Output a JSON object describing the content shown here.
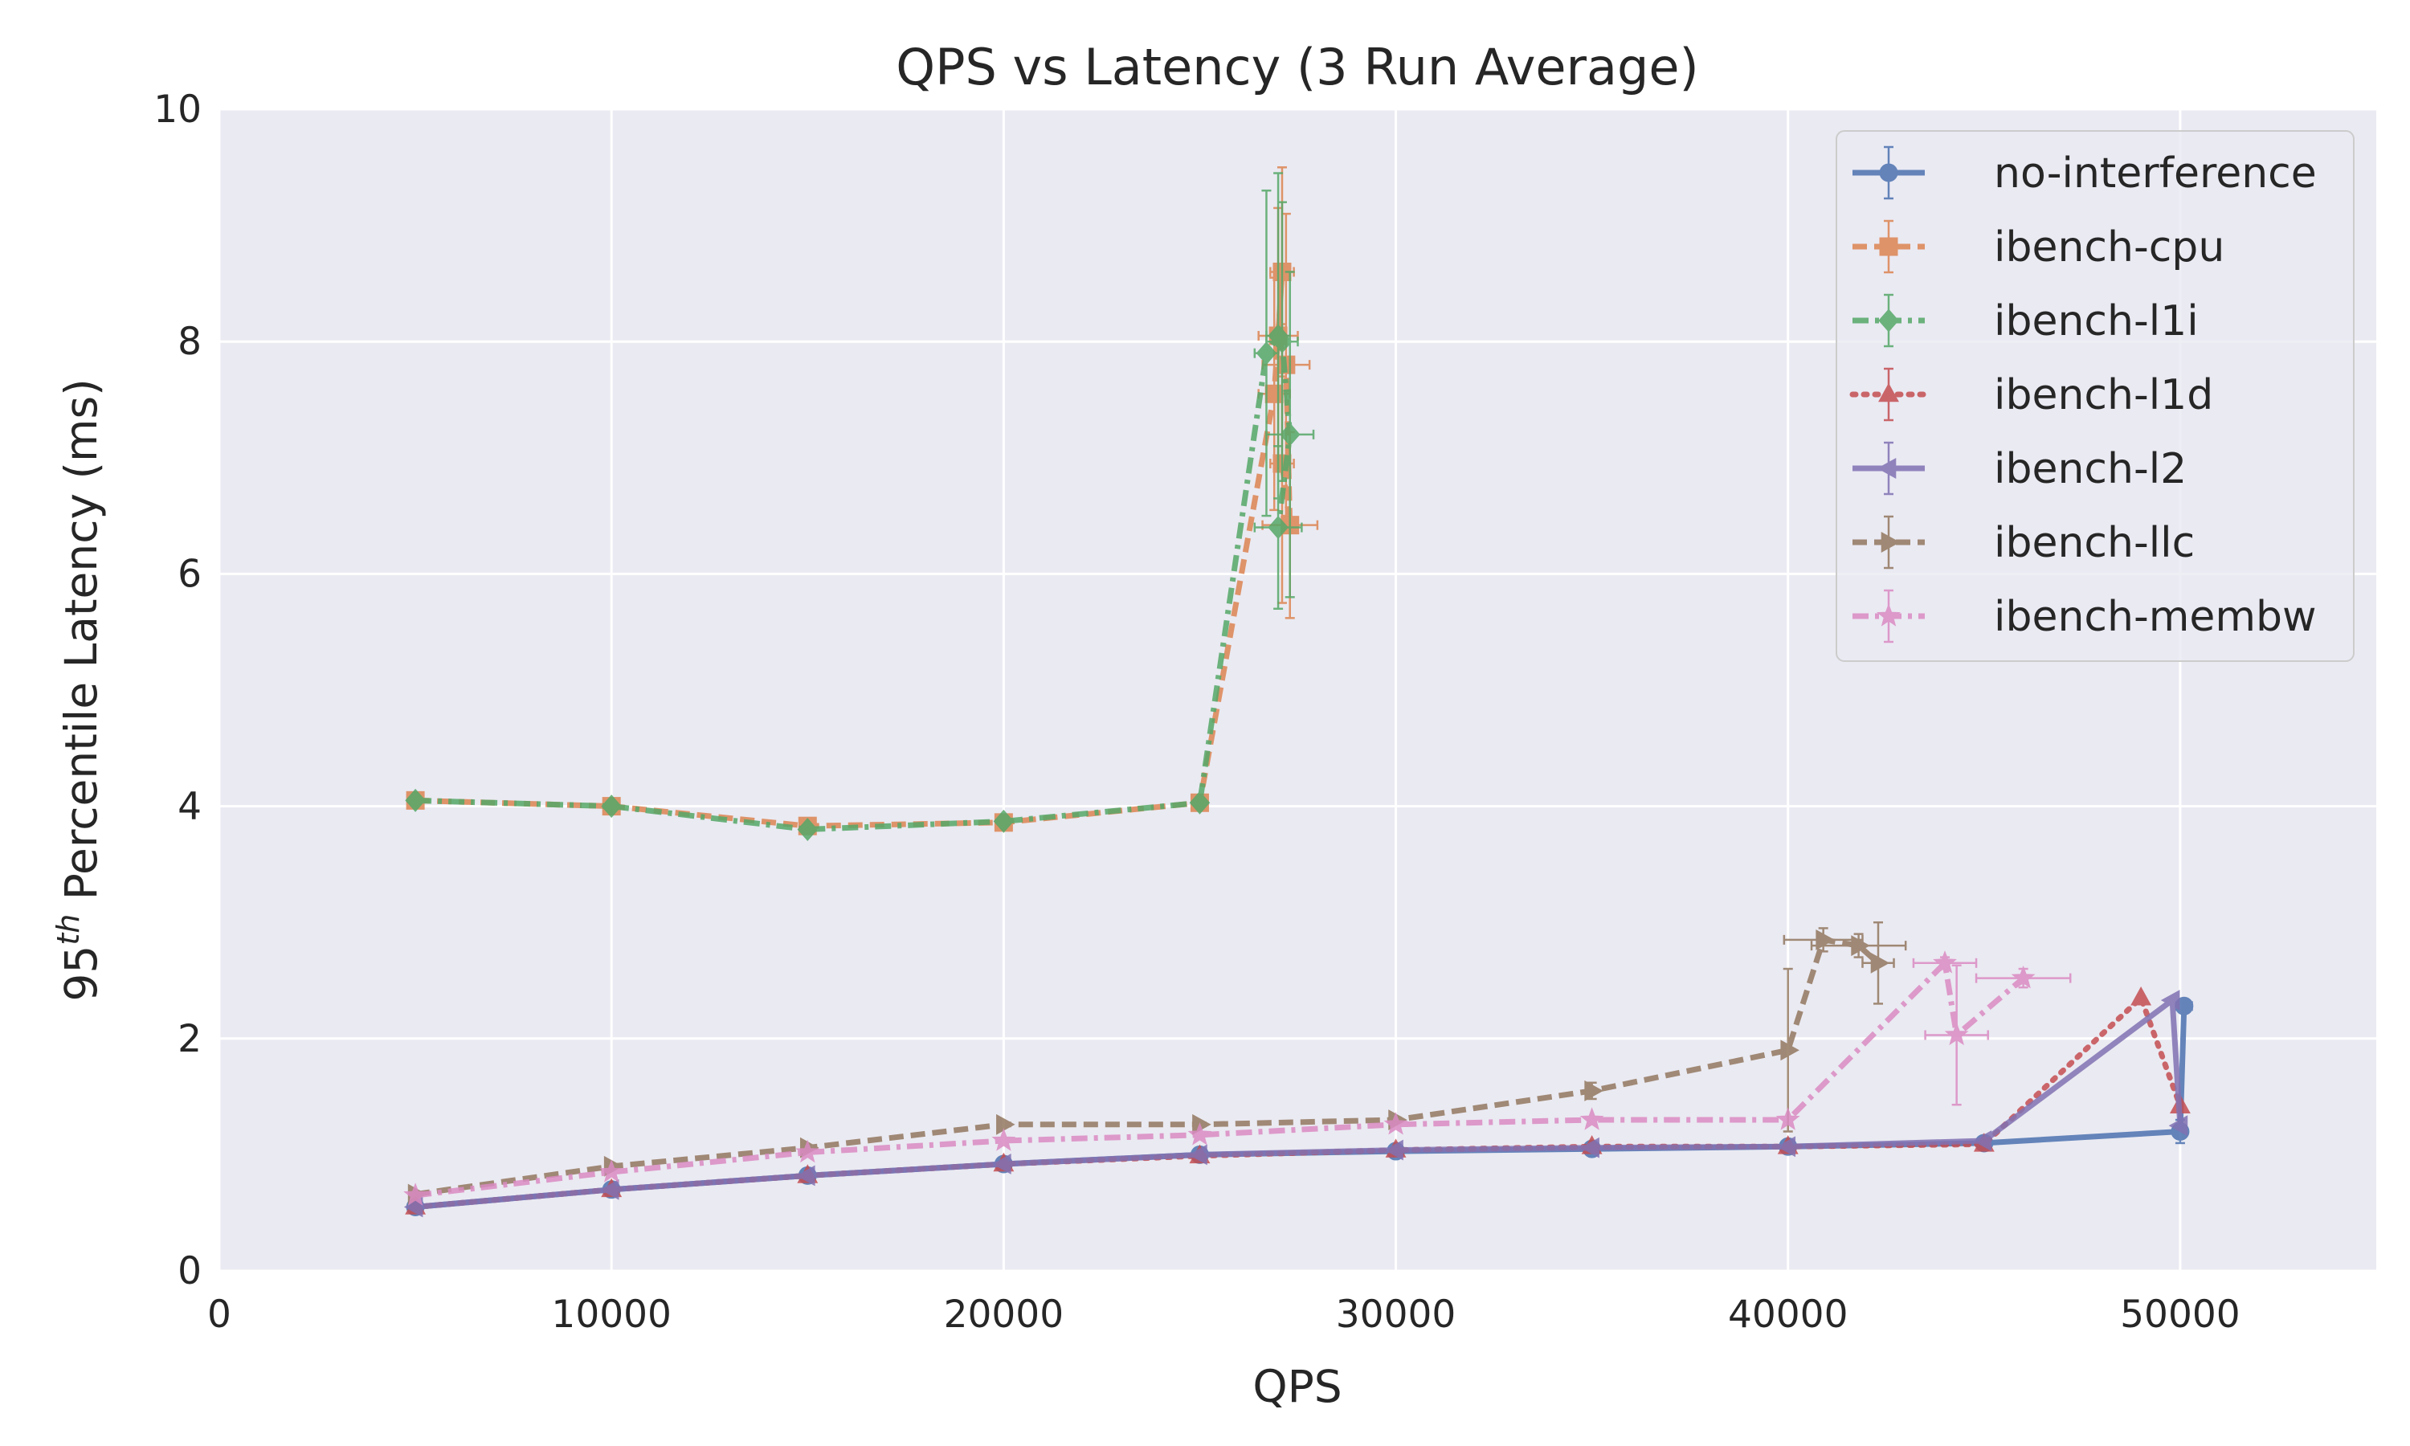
{
  "chart_data": {
    "type": "line",
    "title": "QPS vs Latency (3 Run Average)",
    "xlabel": "QPS",
    "ylabel": "95th Percentile Latency (ms)",
    "ylabel_base": "95",
    "ylabel_sup": "th",
    "ylabel_rest": " Percentile Latency (ms)",
    "xlim": [
      0,
      55000
    ],
    "ylim": [
      0,
      10
    ],
    "xticks": [
      0,
      10000,
      20000,
      30000,
      40000,
      50000
    ],
    "yticks": [
      0,
      2,
      4,
      6,
      8,
      10
    ],
    "grid": true,
    "legend_position": "top-right",
    "series": [
      {
        "name": "no-interference",
        "color": "#4c72b0",
        "dash": "solid",
        "marker": "circle",
        "x": [
          5000,
          10000,
          15000,
          20000,
          25000,
          30000,
          35000,
          40000,
          45000,
          50000,
          50100
        ],
        "y": [
          0.55,
          0.7,
          0.82,
          0.92,
          1.0,
          1.03,
          1.05,
          1.07,
          1.1,
          1.2,
          2.28
        ],
        "xerr": [
          0,
          0,
          0,
          0,
          0,
          0,
          0,
          0,
          0,
          0,
          200
        ],
        "yerr": [
          0,
          0,
          0,
          0,
          0,
          0,
          0,
          0,
          0,
          0.1,
          0.05
        ]
      },
      {
        "name": "ibench-cpu",
        "color": "#dd8452",
        "dash": "dashed",
        "marker": "square",
        "x": [
          5000,
          10000,
          15000,
          20000,
          25000,
          26900,
          27100,
          27000,
          27200,
          27300,
          27100
        ],
        "y": [
          4.05,
          4.0,
          3.83,
          3.86,
          4.03,
          7.55,
          8.6,
          8.05,
          7.8,
          6.42,
          6.95
        ],
        "xerr": [
          0,
          0,
          0,
          0,
          0,
          400,
          300,
          500,
          600,
          700,
          300
        ],
        "yerr": [
          0,
          0,
          0,
          0,
          0,
          1.0,
          0.9,
          1.1,
          1.3,
          0.8,
          1.2
        ]
      },
      {
        "name": "ibench-l1i",
        "color": "#55a868",
        "dash": "dashdot",
        "marker": "diamond",
        "x": [
          5000,
          10000,
          15000,
          20000,
          25000,
          26700,
          27000,
          27100,
          27300,
          27000
        ],
        "y": [
          4.05,
          4.0,
          3.8,
          3.87,
          4.03,
          7.9,
          8.05,
          8.0,
          7.2,
          6.4
        ],
        "xerr": [
          0,
          0,
          0,
          0,
          0,
          300,
          300,
          400,
          600,
          600
        ],
        "yerr": [
          0,
          0,
          0,
          0,
          0,
          1.4,
          1.4,
          1.2,
          1.4,
          0.7
        ]
      },
      {
        "name": "ibench-l1d",
        "color": "#c44e52",
        "dash": "dotted",
        "marker": "triangle-up",
        "x": [
          5000,
          10000,
          15000,
          20000,
          25000,
          30000,
          35000,
          40000,
          45000,
          49000,
          50000
        ],
        "y": [
          0.55,
          0.7,
          0.82,
          0.92,
          0.99,
          1.04,
          1.07,
          1.07,
          1.09,
          2.35,
          1.42
        ],
        "xerr": [
          0,
          0,
          0,
          0,
          0,
          0,
          0,
          0,
          0,
          0,
          0
        ],
        "yerr": [
          0,
          0,
          0,
          0,
          0,
          0,
          0,
          0,
          0,
          0,
          0
        ]
      },
      {
        "name": "ibench-l2",
        "color": "#8172b3",
        "dash": "solid",
        "marker": "triangle-left",
        "x": [
          5000,
          10000,
          15000,
          20000,
          25000,
          30000,
          35000,
          40000,
          45000,
          49800,
          50000
        ],
        "y": [
          0.55,
          0.7,
          0.82,
          0.92,
          1.0,
          1.04,
          1.06,
          1.07,
          1.12,
          2.33,
          1.25
        ],
        "xerr": [
          0,
          0,
          0,
          0,
          0,
          0,
          0,
          0,
          0,
          0,
          0
        ],
        "yerr": [
          0,
          0,
          0,
          0,
          0,
          0,
          0,
          0,
          0,
          0,
          0
        ]
      },
      {
        "name": "ibench-llc",
        "color": "#937860",
        "dash": "dashed",
        "marker": "triangle-right",
        "x": [
          5000,
          10000,
          15000,
          20000,
          25000,
          30000,
          35000,
          40000,
          40900,
          41800,
          42300
        ],
        "y": [
          0.66,
          0.9,
          1.06,
          1.26,
          1.26,
          1.3,
          1.55,
          1.9,
          2.85,
          2.8,
          2.65
        ],
        "xerr": [
          0,
          0,
          0,
          0,
          0,
          0,
          0,
          0,
          1000,
          1200,
          400
        ],
        "yerr": [
          0,
          0,
          0,
          0,
          0,
          0,
          0.07,
          0.7,
          0.1,
          0.1,
          0.35
        ]
      },
      {
        "name": "ibench-membw",
        "color": "#da8bc3",
        "dash": "dashdot",
        "marker": "star",
        "x": [
          5000,
          10000,
          15000,
          20000,
          25000,
          30000,
          35000,
          40000,
          44000,
          44300,
          46000
        ],
        "y": [
          0.65,
          0.85,
          1.02,
          1.12,
          1.17,
          1.26,
          1.3,
          1.3,
          2.65,
          2.03,
          2.52
        ],
        "xerr": [
          0,
          0,
          0,
          0,
          0,
          0,
          0,
          0,
          800,
          800,
          1200
        ],
        "yerr": [
          0,
          0,
          0,
          0,
          0,
          0,
          0,
          0,
          0.05,
          0.6,
          0.08
        ]
      }
    ]
  }
}
